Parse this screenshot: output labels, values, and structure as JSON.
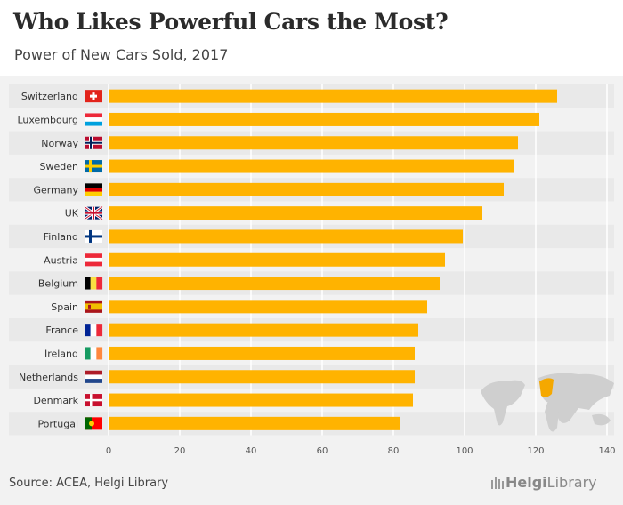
{
  "title": "Who Likes Powerful Cars the Most?",
  "subtitle": "Power of New Cars Sold, 2017",
  "source": "Source: ACEA, Helgi Library",
  "brand": {
    "name": "Helgi",
    "suffix": "Library"
  },
  "colors": {
    "bar": "#ffb300",
    "row_band": "#e9e9e9",
    "highlight_map": "#f5a800",
    "map": "#cfcfcf"
  },
  "chart_data": {
    "type": "bar",
    "orientation": "horizontal",
    "categories": [
      "Switzerland",
      "Luxembourg",
      "Norway",
      "Sweden",
      "Germany",
      "UK",
      "Finland",
      "Austria",
      "Belgium",
      "Spain",
      "France",
      "Ireland",
      "Netherlands",
      "Denmark",
      "Portugal"
    ],
    "flags": [
      "ch",
      "lu",
      "no",
      "se",
      "de",
      "uk",
      "fi",
      "at",
      "be",
      "es",
      "fr",
      "ie",
      "nl",
      "dk",
      "pt"
    ],
    "values": [
      126,
      121,
      115,
      114,
      111,
      105,
      99.5,
      94.5,
      93,
      89.5,
      87,
      86,
      86,
      85.5,
      82
    ],
    "xlim": [
      0,
      140
    ],
    "xticks": [
      0,
      20,
      40,
      60,
      80,
      100,
      120,
      140
    ],
    "grid": true
  }
}
